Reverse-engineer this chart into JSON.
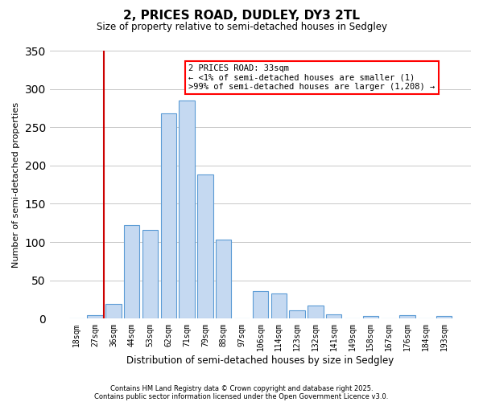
{
  "title": "2, PRICES ROAD, DUDLEY, DY3 2TL",
  "subtitle": "Size of property relative to semi-detached houses in Sedgley",
  "xlabel": "Distribution of semi-detached houses by size in Sedgley",
  "ylabel": "Number of semi-detached properties",
  "bar_labels": [
    "18sqm",
    "27sqm",
    "36sqm",
    "44sqm",
    "53sqm",
    "62sqm",
    "71sqm",
    "79sqm",
    "88sqm",
    "97sqm",
    "106sqm",
    "114sqm",
    "123sqm",
    "132sqm",
    "141sqm",
    "149sqm",
    "158sqm",
    "167sqm",
    "176sqm",
    "184sqm",
    "193sqm"
  ],
  "bar_values": [
    0,
    5,
    19,
    122,
    116,
    268,
    285,
    188,
    103,
    0,
    36,
    33,
    11,
    17,
    6,
    0,
    3,
    0,
    5,
    0,
    3
  ],
  "bar_color": "#c5d9f1",
  "bar_edge_color": "#5b9bd5",
  "annotation_title": "2 PRICES ROAD: 33sqm",
  "annotation_line1": "← <1% of semi-detached houses are smaller (1)",
  "annotation_line2": ">99% of semi-detached houses are larger (1,208) →",
  "vline_color": "#cc0000",
  "vline_pos": 1.5,
  "ylim": [
    0,
    350
  ],
  "yticks": [
    0,
    50,
    100,
    150,
    200,
    250,
    300,
    350
  ],
  "footnote1": "Contains HM Land Registry data © Crown copyright and database right 2025.",
  "footnote2": "Contains public sector information licensed under the Open Government Licence v3.0.",
  "background_color": "#ffffff",
  "grid_color": "#c8c8c8"
}
